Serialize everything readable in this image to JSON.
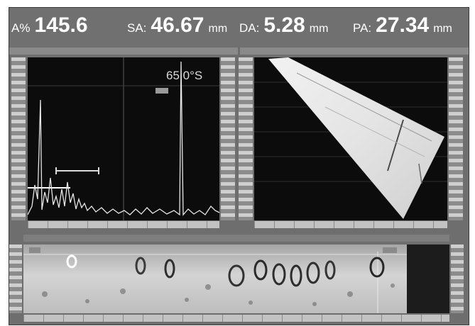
{
  "readouts": {
    "a": {
      "label": "A%",
      "value": "145.6",
      "unit": ""
    },
    "sa": {
      "label": "SA:",
      "value": "46.67",
      "unit": "mm"
    },
    "da": {
      "label": "DA:",
      "value": "5.28",
      "unit": "mm"
    },
    "pa": {
      "label": "PA:",
      "value": "27.34",
      "unit": "mm"
    }
  },
  "ascan": {
    "angle_label": "65.0°S"
  },
  "colors": {
    "panel_frame": "#6e6e6e",
    "scan_background": "#0c0c0c",
    "signal": "#e6e6e6"
  }
}
